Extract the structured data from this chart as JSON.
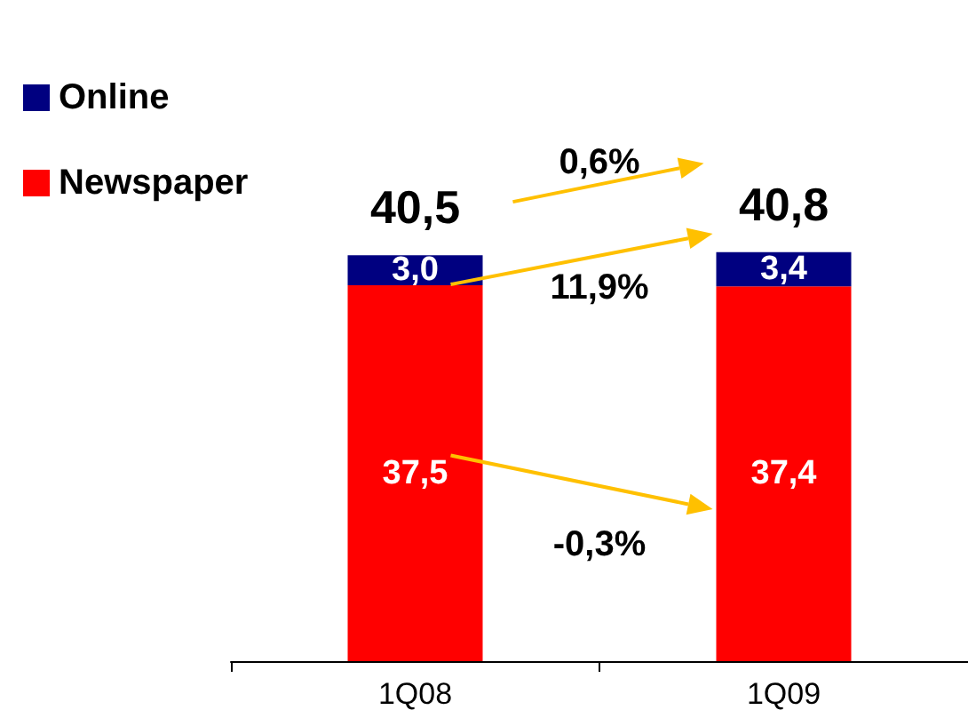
{
  "chart_data": {
    "type": "bar",
    "stacked": true,
    "categories": [
      "1Q08",
      "1Q09"
    ],
    "series": [
      {
        "name": "Newspaper",
        "color": "#ff0000",
        "values": [
          37.5,
          37.4
        ],
        "value_labels": [
          "37,5",
          "37,4"
        ]
      },
      {
        "name": "Online",
        "color": "#000080",
        "values": [
          3.0,
          3.4
        ],
        "value_labels": [
          "3,0",
          "3,4"
        ]
      }
    ],
    "totals": [
      "40,5",
      "40,8"
    ],
    "annotations": [
      "0,6%",
      "11,9%",
      "-0,3%"
    ],
    "legend": "top left",
    "tick_labels": "x",
    "grid": false
  }
}
